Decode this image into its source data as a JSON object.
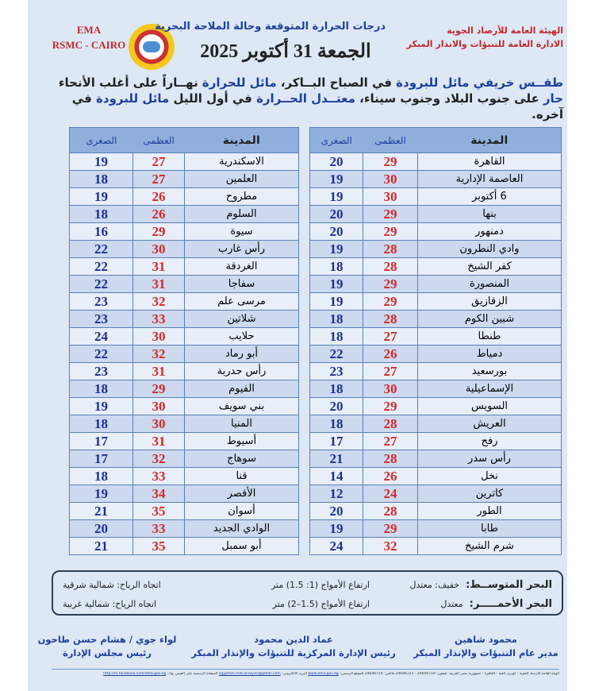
{
  "header": {
    "ema": "EMA",
    "rsmc": "RSMC - CAIRO",
    "title": "درجات الحرارة المتوقعة وحالة الملاحة البحرية",
    "date": "الجمعة 31 أكتوبر 2025",
    "org_line1": "الهيئة العامة للأرصاد الجوية",
    "org_line2": "الادارة العامة للتنبؤات والانذار المبكر",
    "logo_text": "EMA"
  },
  "summary": {
    "parts": [
      {
        "t": "طقــس خريفي مائل للبرودة",
        "hl": true
      },
      {
        "t": " في الصباح البــاكر، ",
        "hl": false
      },
      {
        "t": "مائل للحرارة",
        "hl": true
      },
      {
        "t": " نهــاراً على أغلب الأنحاء ",
        "hl": false
      },
      {
        "t": "حار",
        "hl": true
      },
      {
        "t": " على جنوب البلاد وجنوب سيناء، ",
        "hl": false
      },
      {
        "t": "معتــدل الحــرارة",
        "hl": true
      },
      {
        "t": " في أول الليل ",
        "hl": false
      },
      {
        "t": "مائل للبرودة",
        "hl": true
      },
      {
        "t": " في آخره.",
        "hl": false
      }
    ]
  },
  "table_headers": {
    "city": "المدينة",
    "max": "العظمى",
    "min": "الصغرى"
  },
  "right_table": [
    [
      "القاهرة",
      29,
      20
    ],
    [
      "العاصمة الإدارية",
      30,
      19
    ],
    [
      "6 أكتوبر",
      30,
      19
    ],
    [
      "بنها",
      29,
      20
    ],
    [
      "دمنهور",
      29,
      20
    ],
    [
      "وادي النطرون",
      28,
      19
    ],
    [
      "كفر الشيخ",
      28,
      18
    ],
    [
      "المنصورة",
      29,
      19
    ],
    [
      "الزقازيق",
      29,
      19
    ],
    [
      "شبين الكوم",
      28,
      18
    ],
    [
      "طنطا",
      27,
      18
    ],
    [
      "دمياط",
      26,
      22
    ],
    [
      "بورسعيد",
      27,
      23
    ],
    [
      "الإسماعيلية",
      30,
      18
    ],
    [
      "السويس",
      29,
      20
    ],
    [
      "العريش",
      28,
      18
    ],
    [
      "رفح",
      27,
      17
    ],
    [
      "رأس سدر",
      28,
      21
    ],
    [
      "نخل",
      26,
      14
    ],
    [
      "كاترين",
      24,
      12
    ],
    [
      "الطور",
      28,
      20
    ],
    [
      "طابا",
      29,
      19
    ],
    [
      "شرم الشيخ",
      32,
      24
    ]
  ],
  "left_table": [
    [
      "الاسكندرية",
      27,
      19
    ],
    [
      "العلمين",
      27,
      18
    ],
    [
      "مطروح",
      26,
      19
    ],
    [
      "السلوم",
      26,
      18
    ],
    [
      "سيوة",
      29,
      16
    ],
    [
      "رأس غارب",
      30,
      22
    ],
    [
      "الغردقة",
      31,
      22
    ],
    [
      "سفاجا",
      31,
      22
    ],
    [
      "مرسى علم",
      32,
      23
    ],
    [
      "شلاتين",
      33,
      23
    ],
    [
      "حلايب",
      30,
      24
    ],
    [
      "أبو رماد",
      32,
      22
    ],
    [
      "رأس حدربة",
      31,
      23
    ],
    [
      "الفيوم",
      29,
      18
    ],
    [
      "بني سويف",
      30,
      19
    ],
    [
      "المنيا",
      30,
      18
    ],
    [
      "أسيوط",
      31,
      17
    ],
    [
      "سوهاج",
      32,
      17
    ],
    [
      "قنا",
      33,
      18
    ],
    [
      "الأقصر",
      34,
      19
    ],
    [
      "أسوان",
      35,
      21
    ],
    [
      "الوادي الجديد",
      33,
      20
    ],
    [
      "أبو سمبل",
      35,
      21
    ]
  ],
  "sea": {
    "med": {
      "name": "البحر المتوســط:",
      "state": "خفيف: معتدل",
      "waves": "ارتفاع الأمواج (1: 1.5) متر",
      "wind": "اتجاه الرياح: شمالية شرقية"
    },
    "red": {
      "name": "البحر الأحمـــــر:",
      "state": "معتدل",
      "waves": "ارتفاع الأمواج (1.5–2) متر",
      "wind": "اتجاه الرياح: شمالية غربية"
    }
  },
  "signatures": [
    {
      "name": "محمود شاهين",
      "role": "مدير عام التنبؤات والإنذار المبكر"
    },
    {
      "name": "عماد الدين محمود",
      "role": "رئيس الإدارة المركزية للتنبؤات والإنذار المبكر"
    },
    {
      "name": "لواء جوي / هشام حسن طاحون",
      "role": "رئيس مجلس الإدارة"
    }
  ],
  "footer": {
    "text": "الهيئة العامة للأرصاد الجوية - كوبري القبة - القاهرة - جمهورية مصر العربية. تليفون: 24646719 - 24646721 فاكس: 24646714 الموقع الرسمي:",
    "site": "www.ema.gov.eg",
    "email_label": "البريد الالكتروني:",
    "email": "egyptian.met.analysis@gmail.com",
    "fb_label": "الصفحة الرسمية على الفيس بوك:",
    "fb": "http://m.facebook.com/ema.gov.eg"
  }
}
